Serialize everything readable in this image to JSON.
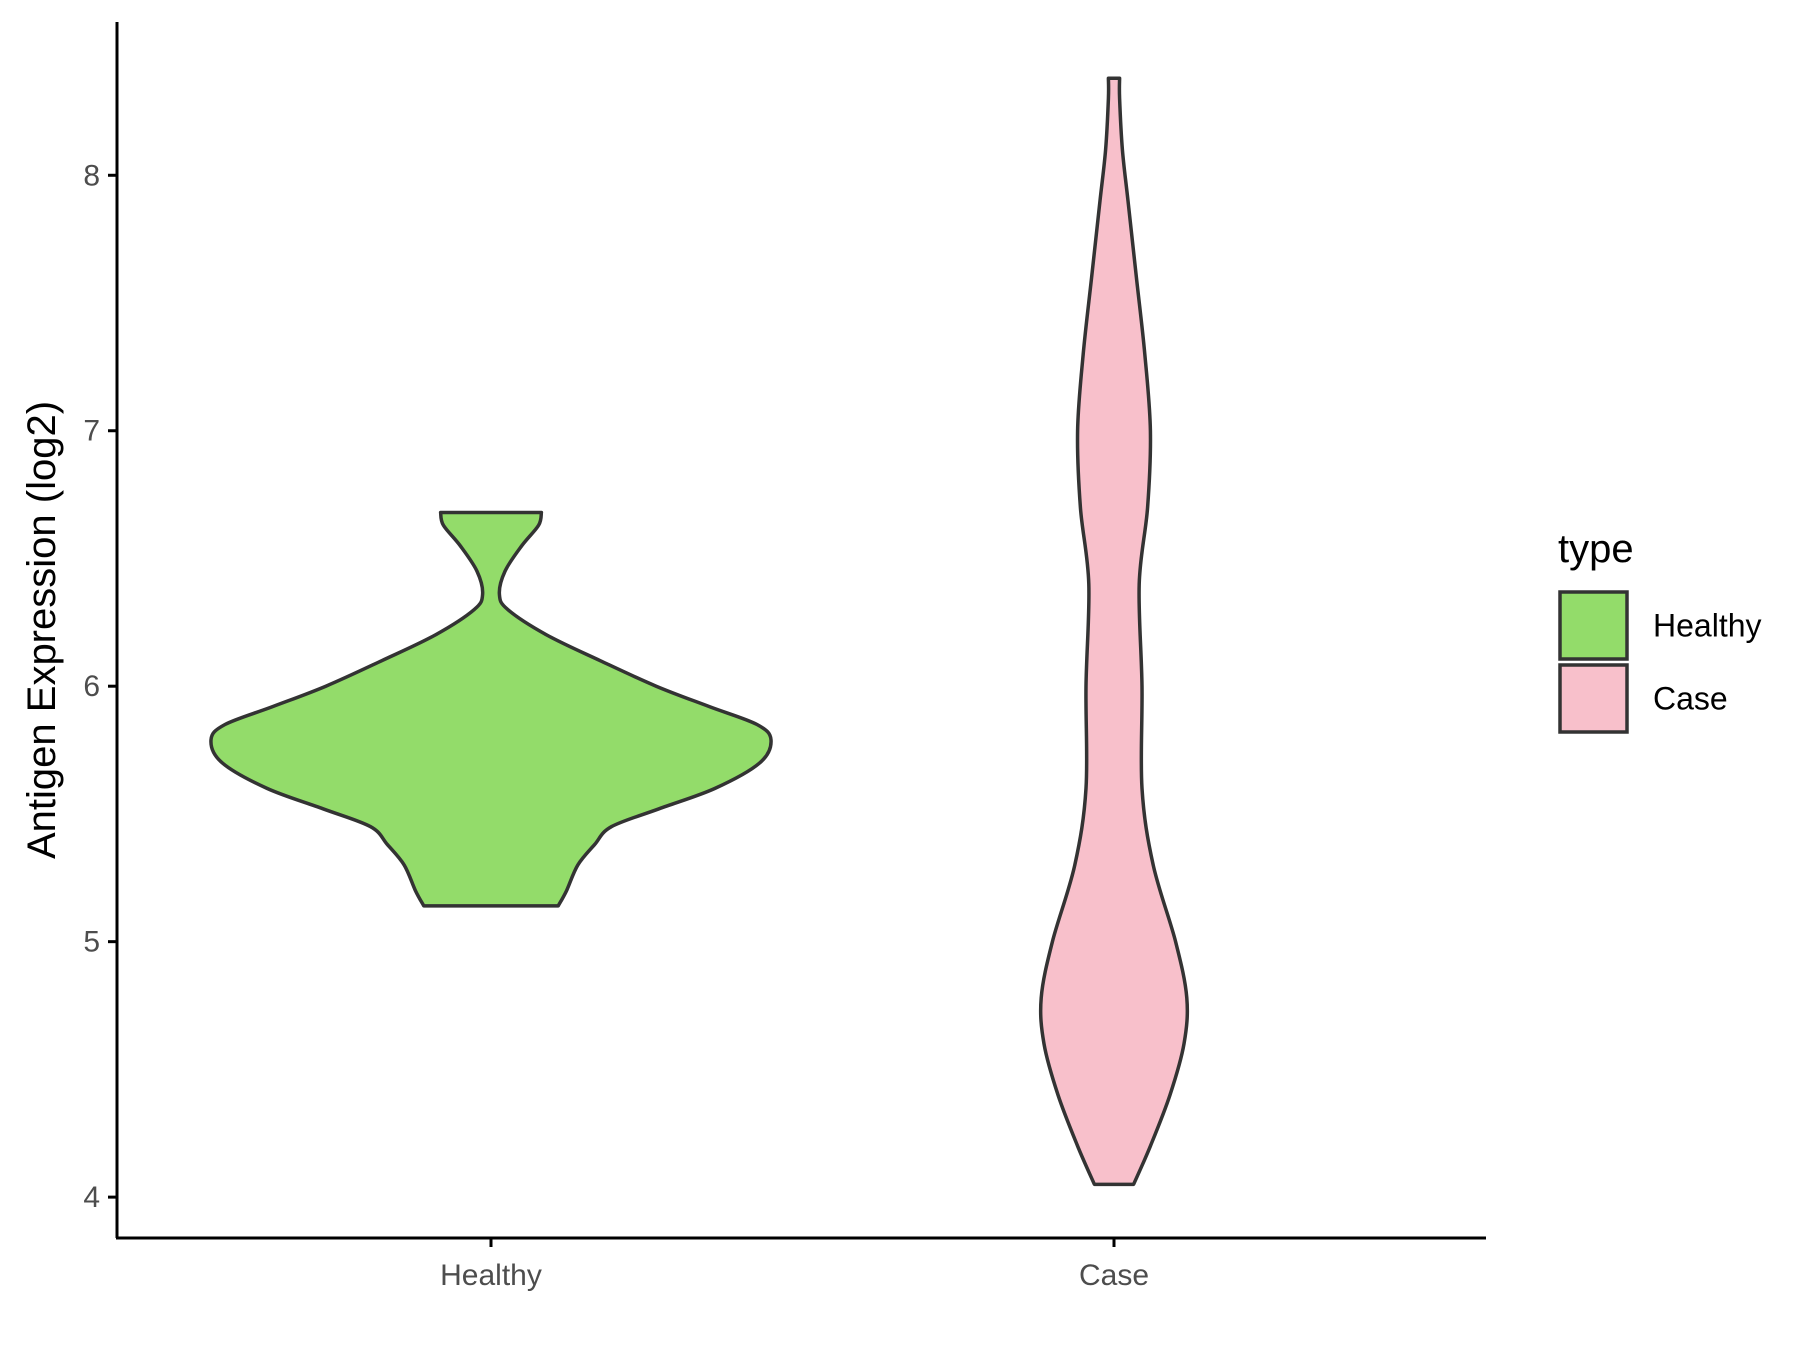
{
  "chart_data": {
    "type": "violin",
    "xlabel": "",
    "ylabel": "Antigen Expression (log2)",
    "ylim": [
      3.84,
      8.6
    ],
    "y_ticks": [
      4,
      5,
      6,
      7,
      8
    ],
    "categories": [
      "Healthy",
      "Case"
    ],
    "grid": false,
    "legend": {
      "title": "type",
      "position": "right",
      "entries": [
        {
          "label": "Healthy",
          "color": "#93DC6A"
        },
        {
          "label": "Case",
          "color": "#F8C0CB"
        }
      ]
    },
    "outline_color": "#333333",
    "series": [
      {
        "name": "Healthy",
        "color": "#93DC6A",
        "y_min": 5.14,
        "y_max": 6.68,
        "profile": [
          [
            5.14,
            0.24
          ],
          [
            5.2,
            0.27
          ],
          [
            5.3,
            0.31
          ],
          [
            5.38,
            0.37
          ],
          [
            5.45,
            0.43
          ],
          [
            5.52,
            0.6
          ],
          [
            5.6,
            0.8
          ],
          [
            5.7,
            0.96
          ],
          [
            5.79,
            1.0
          ],
          [
            5.85,
            0.95
          ],
          [
            5.92,
            0.78
          ],
          [
            6.0,
            0.59
          ],
          [
            6.1,
            0.39
          ],
          [
            6.2,
            0.2
          ],
          [
            6.3,
            0.06
          ],
          [
            6.36,
            0.03
          ],
          [
            6.45,
            0.05
          ],
          [
            6.55,
            0.11
          ],
          [
            6.63,
            0.17
          ],
          [
            6.68,
            0.18
          ]
        ]
      },
      {
        "name": "Case",
        "color": "#F8C0CB",
        "y_min": 4.05,
        "y_max": 8.38,
        "profile": [
          [
            4.05,
            0.07
          ],
          [
            4.2,
            0.13
          ],
          [
            4.4,
            0.2
          ],
          [
            4.6,
            0.25
          ],
          [
            4.78,
            0.26
          ],
          [
            5.0,
            0.22
          ],
          [
            5.3,
            0.14
          ],
          [
            5.6,
            0.1
          ],
          [
            6.0,
            0.1
          ],
          [
            6.4,
            0.09
          ],
          [
            6.7,
            0.12
          ],
          [
            7.0,
            0.13
          ],
          [
            7.3,
            0.11
          ],
          [
            7.6,
            0.08
          ],
          [
            7.9,
            0.05
          ],
          [
            8.1,
            0.03
          ],
          [
            8.3,
            0.02
          ],
          [
            8.38,
            0.02
          ]
        ]
      }
    ]
  }
}
